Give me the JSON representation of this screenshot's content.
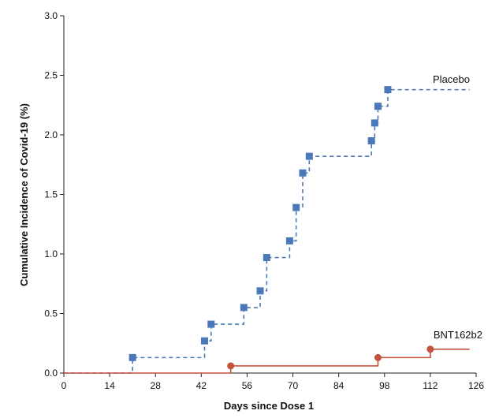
{
  "chart_data": {
    "type": "line",
    "title": "",
    "xlabel": "Days since Dose 1",
    "ylabel": "Cumulative Incidence of Covid-19 (%)",
    "xlim": [
      0,
      126
    ],
    "ylim": [
      0,
      3.0
    ],
    "x_ticks": [
      0,
      14,
      28,
      42,
      56,
      70,
      84,
      98,
      112,
      126
    ],
    "x_tick_labels": [
      "0",
      "14",
      "28",
      "42",
      "56",
      "70",
      "84",
      "98",
      "112",
      "126"
    ],
    "y_ticks": [
      0,
      0.5,
      1.0,
      1.5,
      2.0,
      2.5,
      3.0
    ],
    "y_tick_labels": [
      "0.0",
      "0.5",
      "1.0",
      "1.5",
      "2.0",
      "2.5",
      "3.0"
    ],
    "grid": false,
    "legend": "none",
    "step": true,
    "series": [
      {
        "name": "Placebo",
        "color": "#4a78b8",
        "line_style": "dashed",
        "marker": "square",
        "end_x": 124,
        "events": [
          {
            "x": 21,
            "y": 0.13
          },
          {
            "x": 43,
            "y": 0.27
          },
          {
            "x": 45,
            "y": 0.41
          },
          {
            "x": 55,
            "y": 0.55
          },
          {
            "x": 60,
            "y": 0.69
          },
          {
            "x": 62,
            "y": 0.97
          },
          {
            "x": 69,
            "y": 1.11
          },
          {
            "x": 71,
            "y": 1.39
          },
          {
            "x": 73,
            "y": 1.68
          },
          {
            "x": 75,
            "y": 1.82
          },
          {
            "x": 94,
            "y": 1.95
          },
          {
            "x": 95,
            "y": 2.1
          },
          {
            "x": 96,
            "y": 2.24
          },
          {
            "x": 99,
            "y": 2.38
          }
        ]
      },
      {
        "name": "BNT162b2",
        "color": "#c5513d",
        "line_style": "solid",
        "marker": "circle",
        "end_x": 124,
        "events": [
          {
            "x": 51,
            "y": 0.06
          },
          {
            "x": 96,
            "y": 0.13
          },
          {
            "x": 112,
            "y": 0.2
          }
        ]
      }
    ]
  }
}
